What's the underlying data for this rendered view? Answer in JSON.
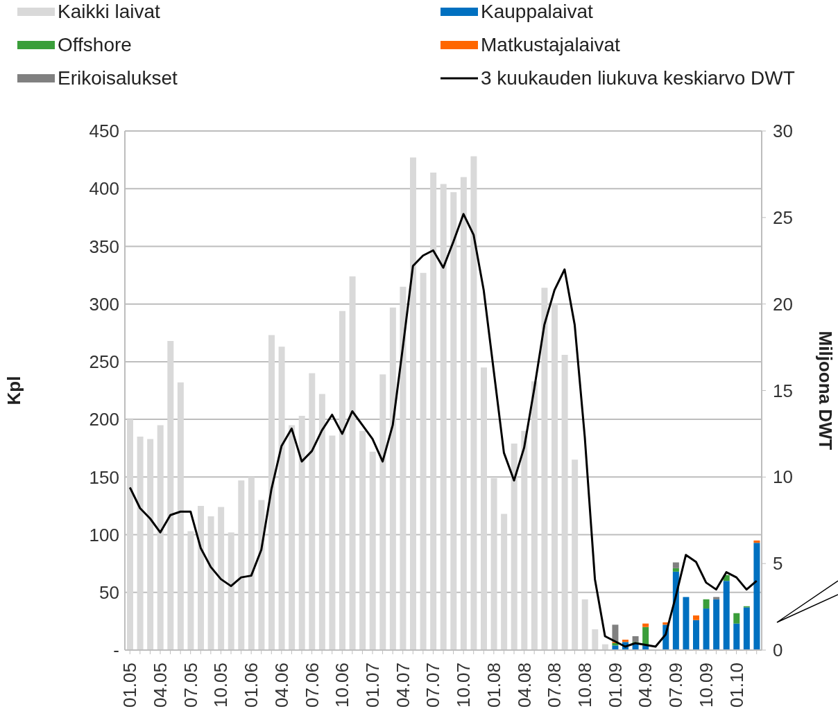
{
  "chart_data": {
    "type": "bar",
    "stacked": true,
    "ylabel": "Kpl",
    "y2label": "Miljoona DWT",
    "categories": [
      "01.05",
      null,
      null,
      "04.05",
      null,
      null,
      "07.05",
      null,
      null,
      "10.05",
      null,
      null,
      "01.06",
      null,
      null,
      "04.06",
      null,
      null,
      "07.06",
      null,
      null,
      "10.06",
      null,
      null,
      "01.07",
      null,
      null,
      "04.07",
      null,
      null,
      "07.07",
      null,
      null,
      "10.07",
      null,
      null,
      "01.08",
      null,
      null,
      "04.08",
      null,
      null,
      "07.08",
      null,
      null,
      "10.08",
      null,
      null,
      "01.09",
      null,
      null,
      "04.09",
      null,
      null,
      "07.09",
      null,
      null,
      "10.09",
      null,
      null,
      "01.10",
      null,
      null
    ],
    "series": [
      {
        "name": "Kaikki laivat",
        "color": "#d9d9d9",
        "values": [
          200,
          185,
          183,
          195,
          268,
          232,
          103,
          125,
          116,
          124,
          102,
          147,
          150,
          130,
          273,
          263,
          195,
          203,
          240,
          222,
          186,
          294,
          324,
          190,
          172,
          239,
          297,
          315,
          427,
          327,
          414,
          404,
          397,
          410,
          428,
          245,
          149,
          118,
          179,
          190,
          233,
          314,
          300,
          256,
          165,
          44,
          18,
          5,
          null,
          null,
          null,
          null,
          null,
          null,
          null,
          null,
          null,
          null,
          null,
          null,
          null,
          null,
          null
        ]
      },
      {
        "name": "Kauppalaivat",
        "color": "#0070c0",
        "values": [
          null,
          null,
          null,
          null,
          null,
          null,
          null,
          null,
          null,
          null,
          null,
          null,
          null,
          null,
          null,
          null,
          null,
          null,
          null,
          null,
          null,
          null,
          null,
          null,
          null,
          null,
          null,
          null,
          null,
          null,
          null,
          null,
          null,
          null,
          null,
          null,
          null,
          null,
          null,
          null,
          null,
          null,
          null,
          null,
          null,
          null,
          null,
          null,
          4,
          7,
          6,
          4,
          null,
          22,
          68,
          46,
          26,
          36,
          44,
          60,
          23,
          37,
          93
        ]
      },
      {
        "name": "Offshore",
        "color": "#3a9e3a",
        "values": [
          null,
          null,
          null,
          null,
          null,
          null,
          null,
          null,
          null,
          null,
          null,
          null,
          null,
          null,
          null,
          null,
          null,
          null,
          null,
          null,
          null,
          null,
          null,
          null,
          null,
          null,
          null,
          null,
          null,
          null,
          null,
          null,
          null,
          null,
          null,
          null,
          null,
          null,
          null,
          null,
          null,
          null,
          null,
          null,
          null,
          null,
          null,
          null,
          2,
          null,
          1,
          16,
          null,
          null,
          3,
          null,
          null,
          8,
          null,
          5,
          9,
          1,
          null
        ]
      },
      {
        "name": "Matkustajalaivat",
        "color": "#ff6600",
        "values": [
          null,
          null,
          null,
          null,
          null,
          null,
          null,
          null,
          null,
          null,
          null,
          null,
          null,
          null,
          null,
          null,
          null,
          null,
          null,
          null,
          null,
          null,
          null,
          null,
          null,
          null,
          null,
          null,
          null,
          null,
          null,
          null,
          null,
          null,
          null,
          null,
          null,
          null,
          null,
          null,
          null,
          null,
          null,
          null,
          null,
          null,
          null,
          null,
          1,
          2,
          null,
          3,
          null,
          2,
          null,
          null,
          4,
          null,
          null,
          null,
          null,
          null,
          2
        ]
      },
      {
        "name": "Erikoisalukset",
        "color": "#808080",
        "values": [
          null,
          null,
          null,
          null,
          null,
          null,
          null,
          null,
          null,
          null,
          null,
          null,
          null,
          null,
          null,
          null,
          null,
          null,
          null,
          null,
          null,
          null,
          null,
          null,
          null,
          null,
          null,
          null,
          null,
          null,
          null,
          null,
          null,
          null,
          null,
          null,
          null,
          null,
          null,
          null,
          null,
          null,
          null,
          null,
          null,
          null,
          null,
          null,
          15,
          null,
          5,
          null,
          null,
          null,
          5,
          null,
          null,
          null,
          2,
          null,
          null,
          null,
          null
        ]
      },
      {
        "name": "3 kuukauden liukuva keskiarvo DWT",
        "type": "line",
        "axis": "y2",
        "color": "#000000",
        "values": [
          9.4,
          8.2,
          7.6,
          6.8,
          7.8,
          8.0,
          8.0,
          5.9,
          4.8,
          4.1,
          3.7,
          4.2,
          4.3,
          5.8,
          9.3,
          11.8,
          12.8,
          10.9,
          11.5,
          12.7,
          13.6,
          12.5,
          13.8,
          13.0,
          12.2,
          10.9,
          13.0,
          17.5,
          22.2,
          22.8,
          23.1,
          22.1,
          23.6,
          25.2,
          24.0,
          20.8,
          16.1,
          11.4,
          9.8,
          11.7,
          15.1,
          18.8,
          20.8,
          22.0,
          18.8,
          12.3,
          4.1,
          0.8,
          0.5,
          0.2,
          0.4,
          0.3,
          0.2,
          0.9,
          3.1,
          5.5,
          5.1,
          3.9,
          3.5,
          4.5,
          4.2,
          3.5,
          4.0
        ]
      }
    ],
    "ylim": [
      0,
      450
    ],
    "yticks": [
      {
        "value": 0,
        "label": "-"
      },
      50,
      100,
      150,
      200,
      250,
      300,
      350,
      400,
      450
    ],
    "y2lim": [
      0,
      30
    ],
    "y2ticks": [
      0,
      5,
      10,
      15,
      20,
      25,
      30
    ],
    "grid": "y",
    "legend": "top"
  }
}
